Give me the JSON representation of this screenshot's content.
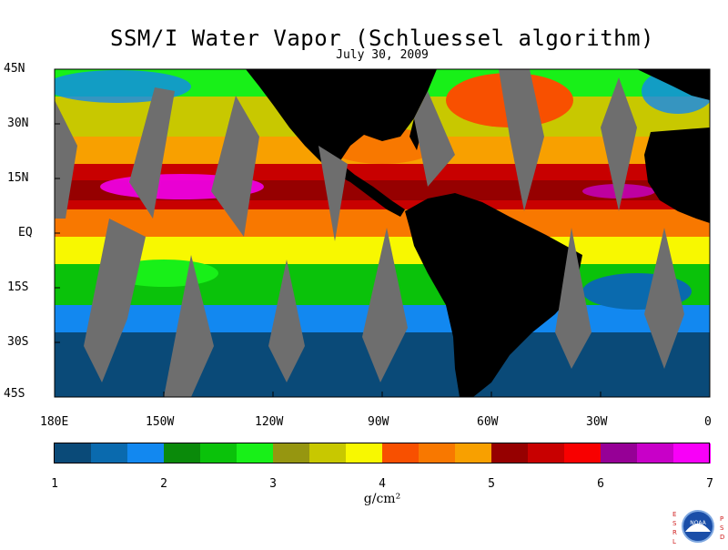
{
  "title": "SSM/I Water Vapor (Schluessel algorithm)",
  "date": "July 30, 2009",
  "map": {
    "lat_labels": [
      "45N",
      "30N",
      "15N",
      "EQ",
      "15S",
      "30S",
      "45S"
    ],
    "lon_labels": [
      "180E",
      "150W",
      "120W",
      "90W",
      "60W",
      "30W",
      "0"
    ],
    "lon_range": [
      -180,
      0
    ],
    "lat_range": [
      -45,
      45
    ],
    "land_color": "#000000",
    "no_data_color": "#6e6e6e"
  },
  "colorbar": {
    "units": "g/cm²",
    "tick_labels": [
      "1",
      "2",
      "3",
      "4",
      "5",
      "6",
      "7"
    ],
    "range": [
      1,
      7
    ],
    "colors": [
      "#0a4a78",
      "#0a6aae",
      "#1288f0",
      "#0a8a0a",
      "#0ac20a",
      "#18f018",
      "#969610",
      "#c8c800",
      "#f8f800",
      "#f85000",
      "#f87800",
      "#f8a000",
      "#960000",
      "#c80000",
      "#f80000",
      "#960096",
      "#c800c8",
      "#f800f8"
    ]
  },
  "logo": {
    "left_letters": [
      "E",
      "S",
      "R",
      "L"
    ],
    "right_letters": [
      "P",
      "S",
      "D"
    ],
    "badge_text": "NOAA"
  }
}
